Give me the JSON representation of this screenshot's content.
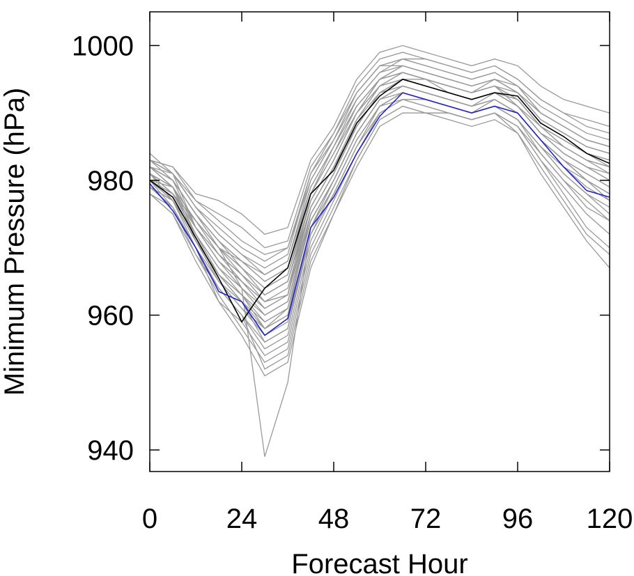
{
  "chart_data": {
    "type": "line",
    "title": "",
    "xlabel": "Forecast Hour",
    "ylabel": "Minimum Pressure (hPa)",
    "xlim": [
      0,
      120
    ],
    "ylim": [
      936.8,
      1005
    ],
    "xticks": [
      0,
      24,
      48,
      72,
      96,
      120
    ],
    "yticks": [
      940,
      960,
      980,
      1000
    ],
    "x": [
      0,
      6,
      12,
      18,
      24,
      30,
      36,
      42,
      48,
      54,
      60,
      66,
      72,
      78,
      84,
      90,
      96,
      102,
      108,
      114,
      120
    ],
    "colors": {
      "ensemble": "#999999",
      "mean": "#000000",
      "control": "#2222cc"
    },
    "highlight_series": [
      {
        "role": "mean",
        "values": [
          980,
          977.5,
          971.5,
          965.5,
          959,
          964,
          967,
          978,
          981.5,
          988.5,
          992.5,
          995,
          994,
          993,
          992,
          993,
          992.5,
          988.5,
          986.5,
          984,
          982.5
        ]
      },
      {
        "role": "control",
        "values": [
          979.5,
          975.5,
          970,
          963.5,
          962,
          957,
          959.5,
          973,
          977.5,
          984,
          989.5,
          993,
          992,
          991,
          990,
          991,
          990,
          986,
          982,
          978.5,
          977.5
        ]
      }
    ],
    "ensemble_series": [
      [
        983,
        981,
        973,
        968,
        965,
        962,
        963,
        978,
        985,
        991,
        995,
        996,
        995,
        994,
        993,
        994,
        991,
        987,
        984,
        982,
        980
      ],
      [
        982,
        980,
        975,
        971,
        968,
        966,
        968,
        980,
        986,
        993,
        997,
        997,
        996,
        995,
        994,
        995,
        993,
        990,
        988,
        986,
        985
      ],
      [
        981,
        979,
        972,
        966,
        962,
        958,
        960,
        975,
        981,
        988,
        993,
        994,
        993,
        992,
        991,
        993,
        991,
        988,
        985,
        983,
        982
      ],
      [
        980,
        978,
        973,
        969,
        966,
        963,
        965,
        976,
        982,
        989,
        994,
        995,
        995,
        994,
        993,
        994,
        993,
        989,
        987,
        985,
        984
      ],
      [
        979,
        976,
        970,
        964,
        960,
        955,
        957,
        971,
        978,
        985,
        991,
        993,
        992,
        991,
        990,
        991,
        989,
        984,
        980,
        976,
        974
      ],
      [
        983,
        982,
        977,
        975,
        973,
        970,
        971,
        982,
        987,
        994,
        998,
        999,
        998,
        997,
        996,
        997,
        995,
        992,
        990,
        988,
        987
      ],
      [
        978,
        975,
        969,
        963,
        958,
        953,
        955,
        969,
        976,
        983,
        989,
        991,
        990,
        990,
        989,
        990,
        988,
        983,
        978,
        973,
        970
      ],
      [
        982,
        979,
        974,
        970,
        967,
        964,
        966,
        977,
        983,
        990,
        994,
        996,
        995,
        993,
        992,
        993,
        992,
        988,
        986,
        984,
        983
      ],
      [
        981,
        978,
        972,
        967,
        964,
        960,
        962,
        974,
        980,
        987,
        992,
        994,
        993,
        992,
        991,
        992,
        990,
        986,
        983,
        980,
        978
      ],
      [
        980,
        977,
        971,
        965,
        961,
        957,
        959,
        972,
        979,
        986,
        991,
        992,
        992,
        991,
        990,
        991,
        989,
        985,
        981,
        978,
        976
      ],
      [
        984,
        981,
        976,
        972,
        969,
        967,
        969,
        981,
        986,
        992,
        996,
        998,
        997,
        996,
        995,
        996,
        994,
        991,
        989,
        987,
        986
      ],
      [
        979,
        977,
        970,
        962,
        959,
        954,
        956,
        970,
        977,
        984,
        990,
        992,
        991,
        990,
        989,
        990,
        988,
        983,
        979,
        975,
        972
      ],
      [
        982,
        980,
        973,
        968,
        965,
        961,
        963,
        976,
        982,
        989,
        994,
        995,
        994,
        993,
        992,
        993,
        991,
        987,
        984,
        982,
        981
      ],
      [
        980,
        978,
        974,
        970,
        968,
        965,
        967,
        979,
        985,
        991,
        995,
        997,
        996,
        995,
        994,
        995,
        994,
        990,
        988,
        986,
        985
      ],
      [
        981,
        979,
        971,
        965,
        962,
        956,
        958,
        973,
        979,
        986,
        991,
        993,
        992,
        991,
        990,
        991,
        989,
        985,
        982,
        979,
        977
      ],
      [
        983,
        980,
        975,
        971,
        967,
        963,
        965,
        977,
        983,
        990,
        995,
        996,
        995,
        994,
        993,
        994,
        992,
        988,
        985,
        983,
        982
      ],
      [
        978,
        976,
        969,
        964,
        960,
        952,
        954,
        968,
        975,
        982,
        988,
        990,
        990,
        989,
        988,
        989,
        987,
        982,
        977,
        972,
        969
      ],
      [
        982,
        981,
        976,
        973,
        970,
        968,
        970,
        980,
        986,
        993,
        997,
        998,
        997,
        996,
        995,
        996,
        994,
        990,
        988,
        986,
        985
      ],
      [
        980,
        977,
        972,
        967,
        963,
        959,
        961,
        974,
        980,
        987,
        992,
        994,
        993,
        992,
        991,
        992,
        990,
        986,
        983,
        981,
        979
      ],
      [
        981,
        978,
        973,
        969,
        965,
        962,
        964,
        976,
        982,
        989,
        993,
        995,
        994,
        993,
        992,
        993,
        991,
        987,
        985,
        983,
        981
      ],
      [
        979,
        976,
        970,
        965,
        961,
        958,
        960,
        973,
        979,
        986,
        991,
        993,
        992,
        991,
        990,
        991,
        989,
        985,
        981,
        978,
        975
      ],
      [
        983,
        982,
        978,
        977,
        975,
        972,
        973,
        983,
        988,
        995,
        999,
        1000,
        999,
        998,
        997,
        998,
        997,
        994,
        992,
        991,
        990
      ],
      [
        980,
        979,
        974,
        970,
        966,
        962,
        963,
        975,
        981,
        988,
        993,
        995,
        994,
        993,
        992,
        993,
        992,
        988,
        986,
        984,
        983
      ],
      [
        981,
        977,
        971,
        966,
        963,
        958,
        961,
        974,
        980,
        987,
        992,
        993,
        992,
        991,
        990,
        992,
        990,
        986,
        982,
        980,
        978
      ],
      [
        982,
        980,
        975,
        971,
        968,
        965,
        967,
        978,
        984,
        991,
        995,
        997,
        996,
        995,
        994,
        995,
        993,
        989,
        987,
        985,
        984
      ],
      [
        978,
        975,
        968,
        962,
        957,
        951,
        953,
        967,
        975,
        983,
        989,
        991,
        990,
        990,
        989,
        990,
        987,
        981,
        976,
        971,
        967
      ],
      [
        981,
        979,
        973,
        968,
        964,
        961,
        963,
        976,
        982,
        988,
        993,
        995,
        994,
        993,
        992,
        993,
        991,
        987,
        984,
        982,
        980
      ],
      [
        983,
        981,
        977,
        974,
        971,
        969,
        970,
        981,
        987,
        993,
        997,
        998,
        998,
        997,
        996,
        997,
        995,
        992,
        990,
        989,
        988
      ],
      [
        980,
        976,
        970,
        964,
        960,
        956,
        958,
        972,
        978,
        985,
        990,
        992,
        991,
        990,
        989,
        990,
        988,
        984,
        980,
        977,
        974
      ],
      [
        982,
        979,
        974,
        969,
        966,
        963,
        965,
        977,
        983,
        990,
        994,
        996,
        995,
        994,
        993,
        994,
        992,
        988,
        986,
        984,
        982
      ],
      [
        979,
        977,
        971,
        966,
        962,
        959,
        961,
        974,
        980,
        987,
        992,
        994,
        993,
        992,
        991,
        992,
        990,
        986,
        983,
        980,
        978
      ],
      [
        981,
        978,
        972,
        966,
        963,
        960,
        962,
        975,
        981,
        988,
        993,
        994,
        993,
        992,
        991,
        992,
        990,
        986,
        983,
        981,
        979
      ],
      [
        980,
        978,
        974,
        970,
        967,
        964,
        966,
        978,
        984,
        990,
        995,
        996,
        995,
        994,
        993,
        995,
        993,
        989,
        987,
        985,
        984
      ],
      [
        982,
        980,
        975,
        970,
        964,
        939,
        950,
        973,
        980,
        987,
        992,
        994,
        993,
        992,
        991,
        992,
        990,
        986,
        983,
        980,
        977
      ],
      [
        983,
        981,
        976,
        972,
        969,
        966,
        968,
        979,
        985,
        992,
        996,
        997,
        996,
        995,
        994,
        995,
        993,
        990,
        988,
        986,
        985
      ]
    ]
  }
}
